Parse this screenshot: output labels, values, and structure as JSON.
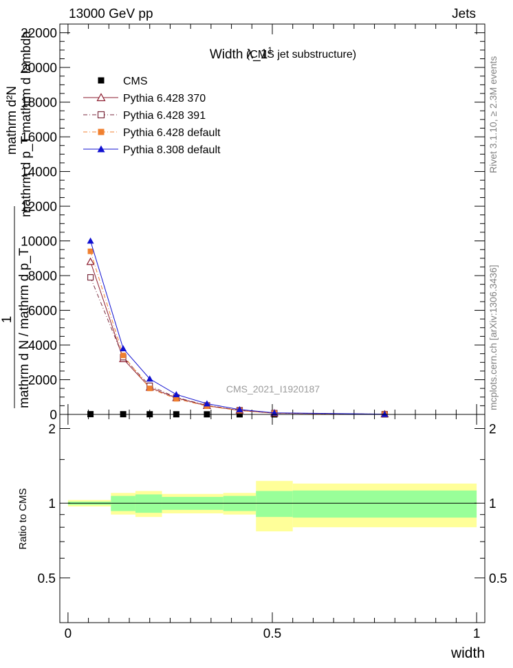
{
  "header": {
    "left": "13000 GeV pp",
    "right": "Jets"
  },
  "side": {
    "rivet": "Rivet 3.1.10, ≥ 2.3M events",
    "mcplots": "mcplots.cern.ch [arXiv:1306.3436]"
  },
  "chart_data": [
    {
      "type": "line",
      "title": "Width λ_1",
      "title_sup": "1",
      "subtitle": "(CMS jet substructure)",
      "watermark": "CMS_2021_I1920187",
      "ylabel_lines": [
        "1",
        "mathrm d²N",
        "mathrm d p_T mathrm d lambda",
        "mathrm d N / mathrm d p_T"
      ],
      "xlim": [
        -0.02,
        1.02
      ],
      "ylim": [
        0,
        22500
      ],
      "yticks": [
        0,
        2000,
        4000,
        6000,
        8000,
        10000,
        12000,
        14000,
        16000,
        18000,
        20000,
        22000
      ],
      "ytick_labels": [
        "0",
        "2000",
        "4000",
        "6000",
        "8000",
        "10000",
        "12000",
        "14000",
        "16000",
        "18000",
        "20000",
        "22000"
      ],
      "legend_position": "top-left",
      "x": [
        0.055,
        0.135,
        0.2,
        0.265,
        0.34,
        0.42,
        0.505,
        0.775
      ],
      "series": [
        {
          "name": "CMS",
          "color": "#000000",
          "marker": "square-filled",
          "dash": "none",
          "values": [
            15,
            12,
            10,
            8,
            6,
            4,
            2,
            1
          ]
        },
        {
          "name": "Pythia 6.428 370",
          "color": "#8b1a2c",
          "marker": "triangle-open",
          "dash": "solid",
          "values": [
            8800,
            3200,
            1550,
            950,
            500,
            230,
            70,
            12
          ]
        },
        {
          "name": "Pythia 6.428 391",
          "color": "#7a2a3c",
          "marker": "square-open",
          "dash": "dashdot",
          "values": [
            7900,
            3300,
            1650,
            980,
            520,
            240,
            75,
            14
          ]
        },
        {
          "name": "Pythia 6.428 default",
          "color": "#f08030",
          "marker": "square-filled",
          "dash": "dashdot",
          "values": [
            9400,
            3400,
            1500,
            900,
            480,
            220,
            65,
            10
          ]
        },
        {
          "name": "Pythia 8.308 default",
          "color": "#1010d0",
          "marker": "triangle-filled",
          "dash": "solid",
          "values": [
            10000,
            3800,
            2050,
            1150,
            620,
            280,
            90,
            16
          ]
        }
      ]
    },
    {
      "type": "area",
      "ylabel": "Ratio to CMS",
      "xlabel": "width",
      "xlim": [
        -0.02,
        1.02
      ],
      "ylim": [
        0.33,
        2.28
      ],
      "yticks": [
        0.5,
        1,
        2
      ],
      "ytick_labels": [
        "0.5",
        "1",
        "2"
      ],
      "xticks": [
        0,
        0.5,
        1
      ],
      "xtick_labels": [
        "0",
        "0.5",
        "1"
      ],
      "bins": [
        0,
        0.105,
        0.165,
        0.23,
        0.38,
        0.46,
        0.55,
        1
      ],
      "band_stat": [
        0.015,
        0.07,
        0.085,
        0.06,
        0.07,
        0.12,
        0.125
      ],
      "band_total": [
        0.03,
        0.1,
        0.12,
        0.09,
        0.1,
        0.23,
        0.2
      ],
      "band_stat_color": "#99ff99",
      "band_total_color": "#ffff99",
      "reference": 1
    }
  ]
}
